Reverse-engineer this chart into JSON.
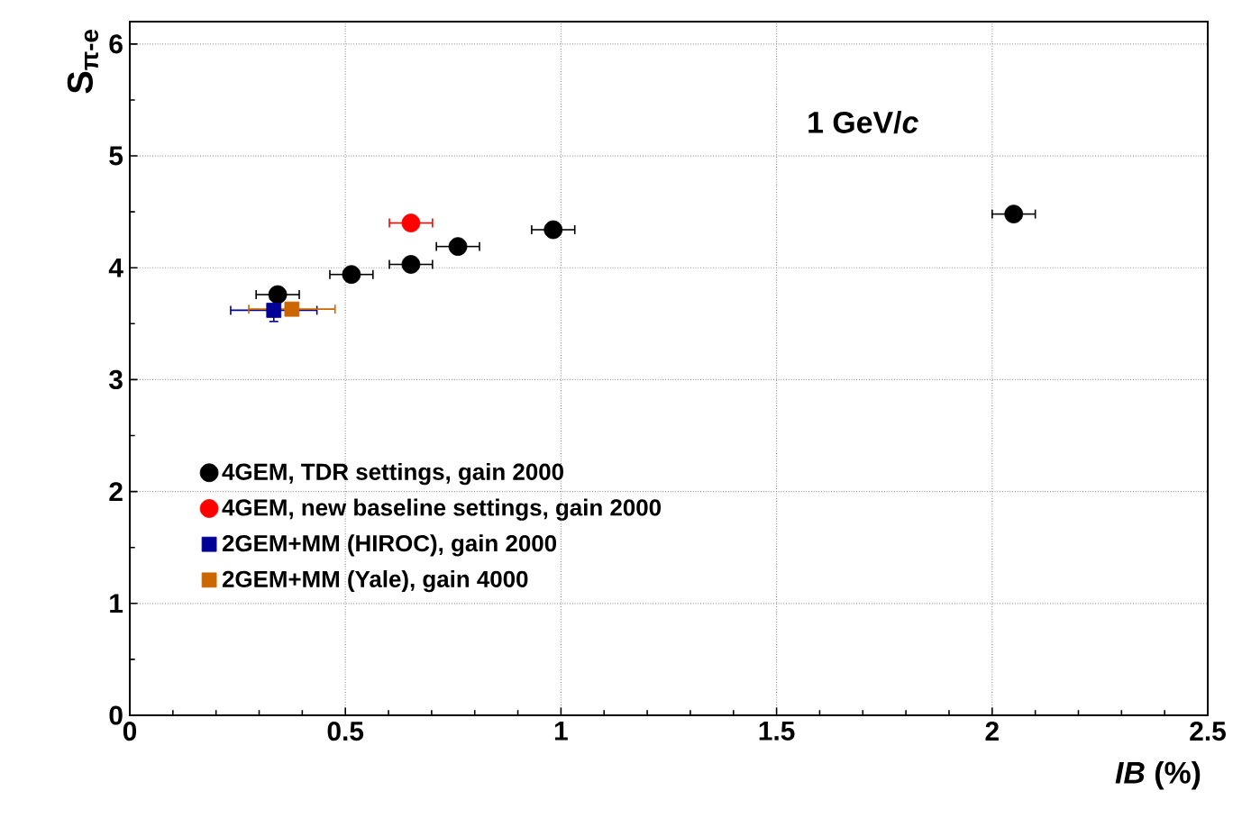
{
  "chart_data": {
    "type": "scatter",
    "xlabel": "*IB* (%)",
    "ylabel": "S$_{π-e}$",
    "annotations": [
      "1 GeV/*c*"
    ],
    "xlim": [
      0,
      2.5
    ],
    "ylim": [
      0,
      6.2
    ],
    "xticks": [
      0,
      0.5,
      1,
      1.5,
      2,
      2.5
    ],
    "yticks": [
      0,
      1,
      2,
      3,
      4,
      5,
      6
    ],
    "grid": true,
    "legend": "bottom left",
    "series": [
      {
        "name": "4GEM, TDR settings, gain 2000",
        "color": "#000000",
        "marker": "circle",
        "x": [
          0.343,
          0.514,
          0.652,
          0.761,
          0.982,
          2.05
        ],
        "values": [
          3.76,
          3.94,
          4.03,
          4.19,
          4.34,
          4.48
        ],
        "xerrors": [
          0.05,
          0.05,
          0.05,
          0.05,
          0.05,
          0.05
        ]
      },
      {
        "name": "4GEM, new baseline settings, gain 2000",
        "color": "#ff0000",
        "marker": "circle",
        "x": [
          0.652
        ],
        "values": [
          4.4
        ],
        "xerrors": [
          0.05
        ]
      },
      {
        "name": "2GEM+MM (HIROC), gain 2000",
        "color": "#000099",
        "marker": "square",
        "x": [
          0.334
        ],
        "values": [
          3.62
        ],
        "xerrors": [
          0.1
        ],
        "errors": [
          0.1
        ]
      },
      {
        "name": "2GEM+MM (Yale), gain 4000",
        "color": "#cc6600",
        "marker": "square",
        "x": [
          0.376
        ],
        "values": [
          3.63
        ],
        "xerrors": [
          0.1
        ]
      }
    ]
  }
}
